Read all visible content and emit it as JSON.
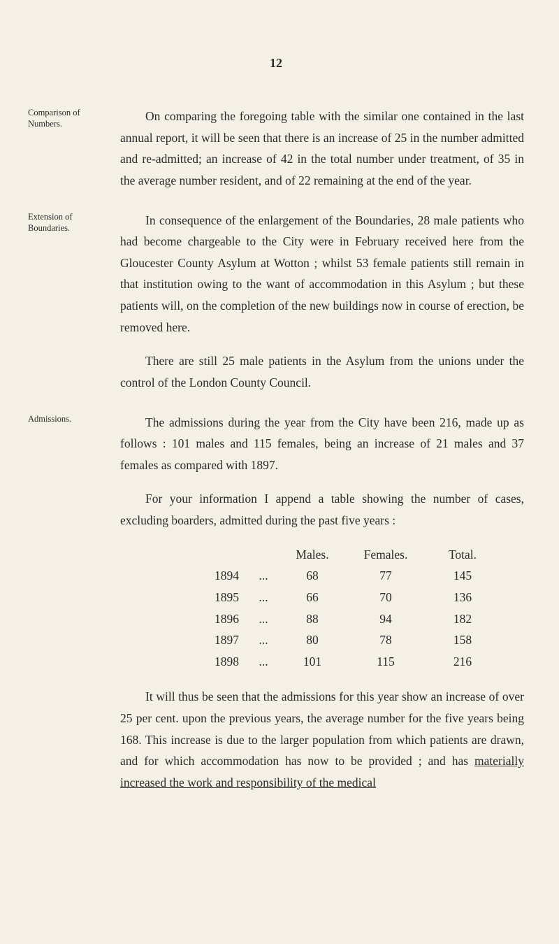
{
  "page_number": "12",
  "sections": [
    {
      "margin": "Comparison of Numbers.",
      "paras": [
        "On comparing the foregoing table with the similar one contained in the last annual report, it will be seen that there is an increase of 25 in the number admitted and re-admitted; an increase of 42 in the total number under treatment, of 35 in the average number resident, and of 22 remaining at the end of the year."
      ]
    },
    {
      "margin": "Extension of Boundaries.",
      "paras": [
        "In consequence of the enlargement of the Boundaries, 28 male patients who had become chargeable to the City were in February received here from the Gloucester County Asylum at Wotton ; whilst 53 female patients still remain in that institution owing to the want of accommodation in this Asylum ; but these patients will, on the completion of the new buildings now in course of erection, be removed here.",
        "There are still 25 male patients in the Asylum from the unions under the control of the London County Council."
      ]
    },
    {
      "margin": "Admissions.",
      "paras": [
        "The admissions during the year from the City have been 216, made up as follows : 101 males and 115 females, being an increase of 21 males and 37 females as compared with 1897.",
        "For your information I append a table showing the number of cases, excluding boarders, admitted during the past five years :"
      ]
    }
  ],
  "table": {
    "headers": {
      "males": "Males.",
      "females": "Females.",
      "total": "Total."
    },
    "rows": [
      {
        "year": "1894",
        "dots": "...",
        "m": "68",
        "f": "77",
        "t": "145"
      },
      {
        "year": "1895",
        "dots": "...",
        "m": "66",
        "f": "70",
        "t": "136"
      },
      {
        "year": "1896",
        "dots": "...",
        "m": "88",
        "f": "94",
        "t": "182"
      },
      {
        "year": "1897",
        "dots": "...",
        "m": "80",
        "f": "78",
        "t": "158"
      },
      {
        "year": "1898",
        "dots": "...",
        "m": "101",
        "f": "115",
        "t": "216"
      }
    ]
  },
  "closing": {
    "part1": "It will thus be seen that the admissions for this year show an increase of over 25 per cent. upon the previous years, the average number for the five years being 168. This increase is due to the larger population from which patients are drawn, and for which accommodation has now to be provided ; and has ",
    "underlined": "materially increased the work and responsibility of the medical"
  }
}
